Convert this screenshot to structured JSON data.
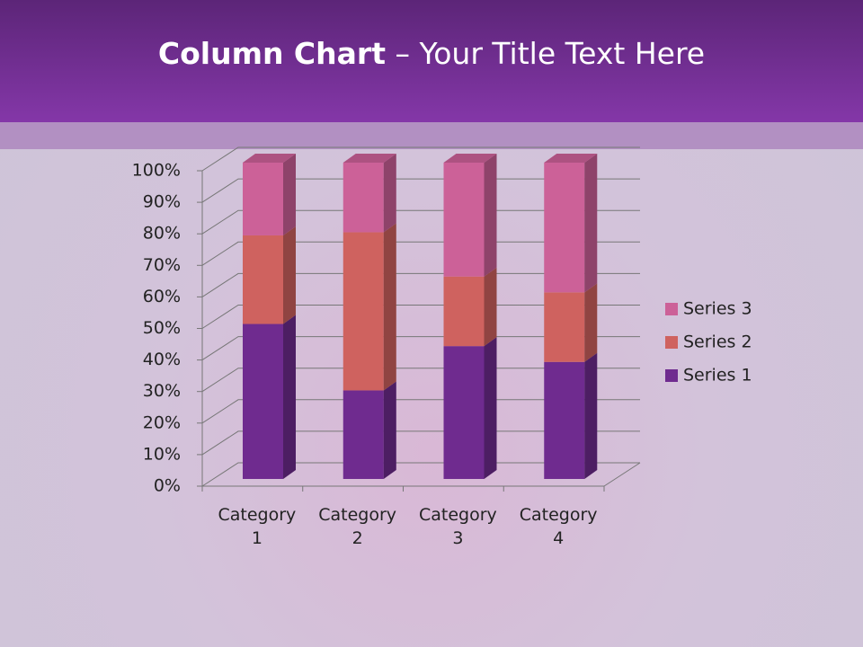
{
  "chart_data": {
    "type": "stacked-bar-3d-percent",
    "title": "Column Chart",
    "subtitle": "– Your Title Text Here",
    "categories": [
      "Category 1",
      "Category 2",
      "Category 3",
      "Category 4"
    ],
    "series": [
      {
        "name": "Series 1",
        "color": "#6f2b8f",
        "values": [
          49,
          28,
          42,
          37
        ]
      },
      {
        "name": "Series 2",
        "color": "#cf625f",
        "values": [
          28,
          50,
          22,
          22
        ]
      },
      {
        "name": "Series 3",
        "color": "#cc6198",
        "values": [
          23,
          22,
          36,
          41
        ]
      }
    ],
    "ylim": [
      0,
      100
    ],
    "yticks": [
      {
        "value": 0,
        "label": "0%"
      },
      {
        "value": 10,
        "label": "10%"
      },
      {
        "value": 20,
        "label": "20%"
      },
      {
        "value": 30,
        "label": "30%"
      },
      {
        "value": 40,
        "label": "40%"
      },
      {
        "value": 50,
        "label": "50%"
      },
      {
        "value": 60,
        "label": "60%"
      },
      {
        "value": 70,
        "label": "70%"
      },
      {
        "value": 80,
        "label": "80%"
      },
      {
        "value": 90,
        "label": "90%"
      },
      {
        "value": 100,
        "label": "100%"
      }
    ],
    "grid": true,
    "legend": "right"
  }
}
